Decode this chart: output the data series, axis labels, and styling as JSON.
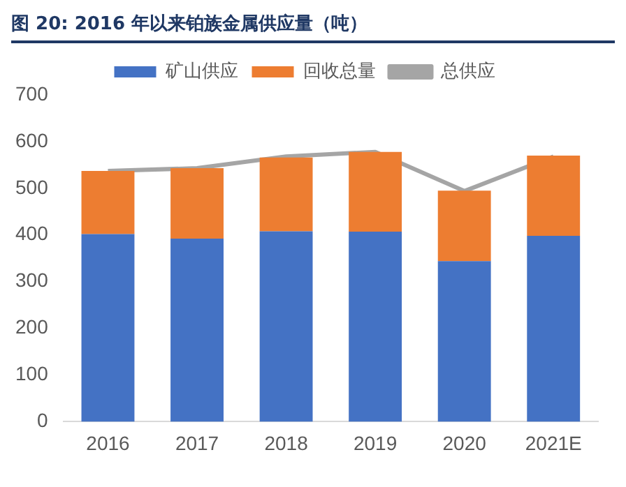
{
  "chart_data": {
    "type": "bar",
    "title": "图 20:   2016 年以来铂族金属供应量（吨）",
    "categories": [
      "2016",
      "2017",
      "2018",
      "2019",
      "2020",
      "2021E"
    ],
    "series": [
      {
        "name": "矿山供应",
        "color": "#4472c4",
        "values": [
          402,
          392,
          408,
          407,
          344,
          398
        ]
      },
      {
        "name": "回收总量",
        "color": "#ed7d31",
        "values": [
          135,
          151,
          158,
          171,
          151,
          172
        ]
      },
      {
        "name": "总供应",
        "type": "line",
        "color": "#a5a5a5",
        "values": [
          537,
          543,
          568,
          578,
          494,
          568
        ]
      }
    ],
    "stacked": true,
    "ylim": [
      0,
      700
    ],
    "yticks": [
      0,
      100,
      200,
      300,
      400,
      500,
      600,
      700
    ],
    "grid": false,
    "legend": "top",
    "marker": "none"
  }
}
